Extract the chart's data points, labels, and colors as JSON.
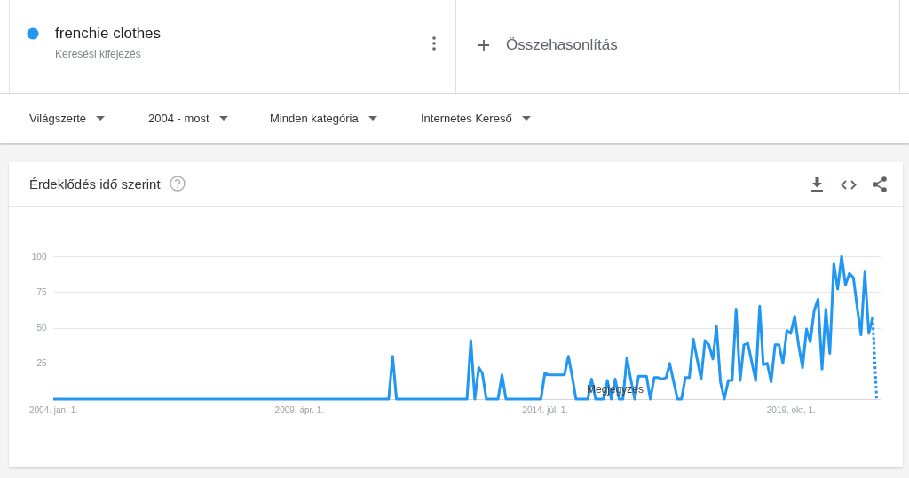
{
  "chart_data": {
    "type": "line",
    "title": "Érdeklődés idő szerint",
    "x": [
      "2004-01",
      "2004-02",
      "2004-03",
      "2004-04",
      "2004-05",
      "2004-06",
      "2004-07",
      "2004-08",
      "2004-09",
      "2004-10",
      "2004-11",
      "2004-12",
      "2005-01",
      "2005-02",
      "2005-03",
      "2005-04",
      "2005-05",
      "2005-06",
      "2005-07",
      "2005-08",
      "2005-09",
      "2005-10",
      "2005-11",
      "2005-12",
      "2006-01",
      "2006-02",
      "2006-03",
      "2006-04",
      "2006-05",
      "2006-06",
      "2006-07",
      "2006-08",
      "2006-09",
      "2006-10",
      "2006-11",
      "2006-12",
      "2007-01",
      "2007-02",
      "2007-03",
      "2007-04",
      "2007-05",
      "2007-06",
      "2007-07",
      "2007-08",
      "2007-09",
      "2007-10",
      "2007-11",
      "2007-12",
      "2008-01",
      "2008-02",
      "2008-03",
      "2008-04",
      "2008-05",
      "2008-06",
      "2008-07",
      "2008-08",
      "2008-09",
      "2008-10",
      "2008-11",
      "2008-12",
      "2009-01",
      "2009-02",
      "2009-03",
      "2009-04",
      "2009-05",
      "2009-06",
      "2009-07",
      "2009-08",
      "2009-09",
      "2009-10",
      "2009-11",
      "2009-12",
      "2010-01",
      "2010-02",
      "2010-03",
      "2010-04",
      "2010-05",
      "2010-06",
      "2010-07",
      "2010-08",
      "2010-09",
      "2010-10",
      "2010-11",
      "2010-12",
      "2011-01",
      "2011-02",
      "2011-03",
      "2011-04",
      "2011-05",
      "2011-06",
      "2011-07",
      "2011-08",
      "2011-09",
      "2011-10",
      "2011-11",
      "2011-12",
      "2012-01",
      "2012-02",
      "2012-03",
      "2012-04",
      "2012-05",
      "2012-06",
      "2012-07",
      "2012-08",
      "2012-09",
      "2012-10",
      "2012-11",
      "2012-12",
      "2013-01",
      "2013-02",
      "2013-03",
      "2013-04",
      "2013-05",
      "2013-06",
      "2013-07",
      "2013-08",
      "2013-09",
      "2013-10",
      "2013-11",
      "2013-12",
      "2014-01",
      "2014-02",
      "2014-03",
      "2014-04",
      "2014-05",
      "2014-06",
      "2014-07",
      "2014-08",
      "2014-09",
      "2014-10",
      "2014-11",
      "2014-12",
      "2015-01",
      "2015-02",
      "2015-03",
      "2015-04",
      "2015-05",
      "2015-06",
      "2015-07",
      "2015-08",
      "2015-09",
      "2015-10",
      "2015-11",
      "2015-12",
      "2016-01",
      "2016-02",
      "2016-03",
      "2016-04",
      "2016-05",
      "2016-06",
      "2016-07",
      "2016-08",
      "2016-09",
      "2016-10",
      "2016-11",
      "2016-12",
      "2017-01",
      "2017-02",
      "2017-03",
      "2017-04",
      "2017-05",
      "2017-06",
      "2017-07",
      "2017-08",
      "2017-09",
      "2017-10",
      "2017-11",
      "2017-12",
      "2018-01",
      "2018-02",
      "2018-03",
      "2018-04",
      "2018-05",
      "2018-06",
      "2018-07",
      "2018-08",
      "2018-09",
      "2018-10",
      "2018-11",
      "2018-12",
      "2019-01",
      "2019-02",
      "2019-03",
      "2019-04",
      "2019-05",
      "2019-06",
      "2019-07",
      "2019-08",
      "2019-09",
      "2019-10",
      "2019-11",
      "2019-12",
      "2020-01",
      "2020-02",
      "2020-03",
      "2020-04",
      "2020-05",
      "2020-06",
      "2020-07",
      "2020-08",
      "2020-09",
      "2020-10",
      "2020-11",
      "2020-12",
      "2021-01",
      "2021-02",
      "2021-03",
      "2021-04",
      "2021-05",
      "2021-06",
      "2021-07"
    ],
    "series": [
      {
        "name": "frenchie clothes",
        "color": "#2196f3",
        "values": [
          0,
          0,
          0,
          0,
          0,
          0,
          0,
          0,
          0,
          0,
          0,
          0,
          0,
          0,
          0,
          0,
          0,
          0,
          0,
          0,
          0,
          0,
          0,
          0,
          0,
          0,
          0,
          0,
          0,
          0,
          0,
          0,
          0,
          0,
          0,
          0,
          0,
          0,
          0,
          0,
          0,
          0,
          0,
          0,
          0,
          0,
          0,
          0,
          0,
          0,
          0,
          0,
          0,
          0,
          0,
          0,
          0,
          0,
          0,
          0,
          0,
          0,
          0,
          0,
          0,
          0,
          0,
          0,
          0,
          0,
          0,
          0,
          0,
          0,
          0,
          0,
          0,
          0,
          0,
          0,
          0,
          0,
          0,
          0,
          0,
          0,
          0,
          30,
          0,
          0,
          0,
          0,
          0,
          0,
          0,
          0,
          0,
          0,
          0,
          0,
          0,
          0,
          0,
          0,
          0,
          0,
          0,
          41,
          0,
          22,
          18,
          0,
          0,
          0,
          0,
          17,
          0,
          0,
          0,
          0,
          0,
          0,
          0,
          0,
          0,
          0,
          18,
          17,
          17,
          17,
          17,
          17,
          30,
          15,
          0,
          0,
          0,
          0,
          14,
          0,
          0,
          0,
          13,
          0,
          14,
          0,
          0,
          29,
          14,
          0,
          16,
          16,
          16,
          0,
          15,
          15,
          14,
          15,
          25,
          12,
          0,
          0,
          15,
          15,
          42,
          28,
          14,
          41,
          38,
          28,
          51,
          12,
          0,
          13,
          13,
          63,
          13,
          38,
          39,
          26,
          13,
          65,
          24,
          25,
          12,
          38,
          38,
          25,
          48,
          46,
          58,
          38,
          22,
          49,
          40,
          62,
          70,
          21,
          63,
          32,
          95,
          77,
          100,
          80,
          88,
          85,
          65,
          45,
          89,
          46,
          57
        ]
      },
      {
        "color": "#2196f3",
        "line_style": "dotted",
        "x": [
          "2021-07",
          "2021-08"
        ],
        "values": [
          57,
          0
        ]
      }
    ],
    "xlim": [
      "2004-01",
      "2021-09"
    ],
    "ylim": [
      0,
      100
    ],
    "xticks": [
      {
        "value": "2004-01-01",
        "label": "2004. jan. 1."
      },
      {
        "value": "2009-04-01",
        "label": "2009. ápr. 1."
      },
      {
        "value": "2014-07-01",
        "label": "2014. júl. 1."
      },
      {
        "value": "2019-10-01",
        "label": "2019. okt. 1."
      }
    ],
    "yticks": [
      25,
      50,
      75,
      100
    ],
    "grid": "y",
    "legend": "top left",
    "annotations": [
      "Keresési kifejezés",
      "Összehasonlítás",
      "Világszerte",
      "2004 - most",
      "Minden kategória",
      "Internetes Kereső",
      {
        "text": "Megjegyzés",
        "x": "2016-01",
        "y": 7
      }
    ]
  }
}
